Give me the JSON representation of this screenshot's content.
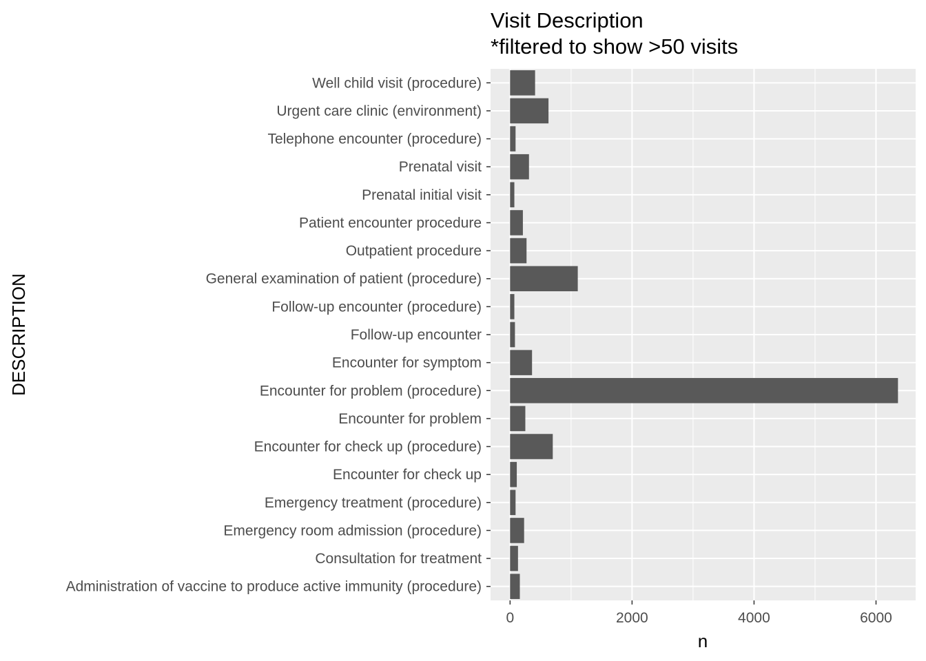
{
  "chart_data": {
    "type": "bar",
    "orientation": "horizontal",
    "title": "Visit Description",
    "subtitle": "*filtered to show >50 visits",
    "xlabel": "n",
    "ylabel": "DESCRIPTION",
    "xlim": [
      -320,
      6650
    ],
    "xticks": [
      "0",
      "2000",
      "4000",
      "6000"
    ],
    "xtick_values": [
      0,
      2000,
      4000,
      6000
    ],
    "grid": true,
    "legend": "none",
    "bar_color": "#595959",
    "panel_color": "#ebebeb",
    "categories": [
      "Well child visit (procedure)",
      "Urgent care clinic (environment)",
      "Telephone encounter (procedure)",
      "Prenatal visit",
      "Prenatal initial visit",
      "Patient encounter procedure",
      "Outpatient procedure",
      "General examination of patient (procedure)",
      "Follow-up encounter (procedure)",
      "Follow-up encounter",
      "Encounter for symptom",
      "Encounter for problem (procedure)",
      "Encounter for problem",
      "Encounter for check up (procedure)",
      "Encounter for check up",
      "Emergency treatment (procedure)",
      "Emergency room admission (procedure)",
      "Consultation for treatment",
      "Administration of vaccine to produce active immunity (procedure)"
    ],
    "values": [
      410,
      630,
      90,
      310,
      70,
      210,
      270,
      1110,
      70,
      80,
      360,
      6360,
      250,
      700,
      110,
      90,
      230,
      130,
      160
    ]
  }
}
